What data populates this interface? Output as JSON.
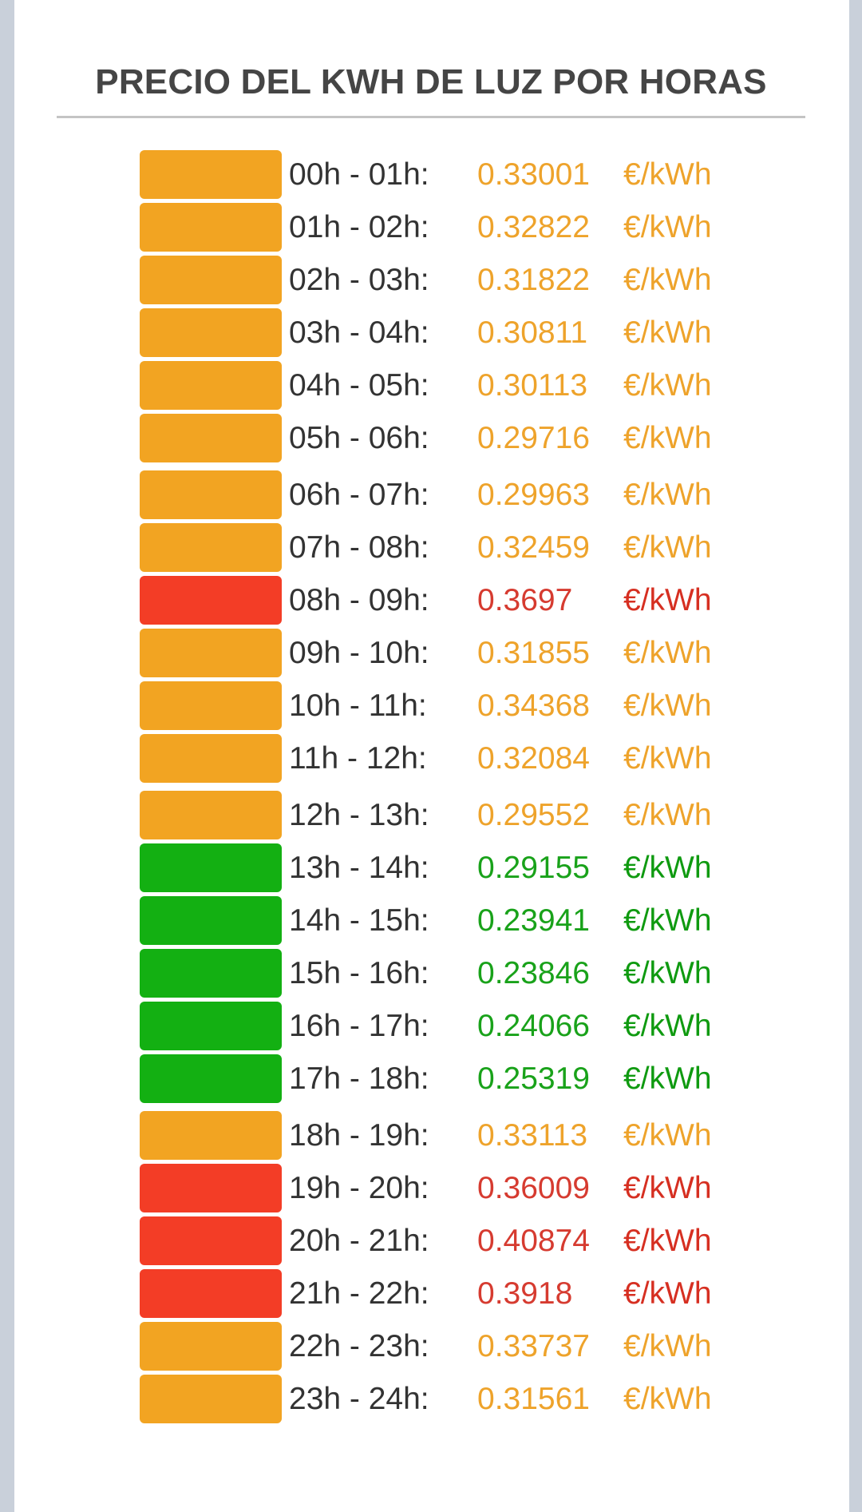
{
  "title": "PRECIO DEL KWH DE LUZ POR HORAS",
  "colors": {
    "mid": "#f2a422",
    "high": "#f33d26",
    "low": "#13b012"
  },
  "rows": [
    {
      "hour": "00h - 01h:",
      "price": "0.33001",
      "unit": "€/kWh",
      "level": "mid"
    },
    {
      "hour": "01h - 02h:",
      "price": "0.32822",
      "unit": "€/kWh",
      "level": "mid"
    },
    {
      "hour": "02h - 03h:",
      "price": "0.31822",
      "unit": "€/kWh",
      "level": "mid"
    },
    {
      "hour": "03h - 04h:",
      "price": "0.30811",
      "unit": "€/kWh",
      "level": "mid"
    },
    {
      "hour": "04h - 05h:",
      "price": "0.30113",
      "unit": "€/kWh",
      "level": "mid"
    },
    {
      "hour": "05h - 06h:",
      "price": "0.29716",
      "unit": "€/kWh",
      "level": "mid"
    },
    {
      "hour": "06h - 07h:",
      "price": "0.29963",
      "unit": "€/kWh",
      "level": "mid"
    },
    {
      "hour": "07h - 08h:",
      "price": "0.32459",
      "unit": "€/kWh",
      "level": "mid"
    },
    {
      "hour": "08h - 09h:",
      "price": "0.3697",
      "unit": "€/kWh",
      "level": "high"
    },
    {
      "hour": "09h - 10h:",
      "price": "0.31855",
      "unit": "€/kWh",
      "level": "mid"
    },
    {
      "hour": "10h - 11h:",
      "price": "0.34368",
      "unit": "€/kWh",
      "level": "mid"
    },
    {
      "hour": "11h - 12h:",
      "price": "0.32084",
      "unit": "€/kWh",
      "level": "mid"
    },
    {
      "hour": "12h - 13h:",
      "price": "0.29552",
      "unit": "€/kWh",
      "level": "mid"
    },
    {
      "hour": "13h - 14h:",
      "price": "0.29155",
      "unit": "€/kWh",
      "level": "low"
    },
    {
      "hour": "14h - 15h:",
      "price": "0.23941",
      "unit": "€/kWh",
      "level": "low"
    },
    {
      "hour": "15h - 16h:",
      "price": "0.23846",
      "unit": "€/kWh",
      "level": "low"
    },
    {
      "hour": "16h - 17h:",
      "price": "0.24066",
      "unit": "€/kWh",
      "level": "low"
    },
    {
      "hour": "17h - 18h:",
      "price": "0.25319",
      "unit": "€/kWh",
      "level": "low"
    },
    {
      "hour": "18h - 19h:",
      "price": "0.33113",
      "unit": "€/kWh",
      "level": "mid"
    },
    {
      "hour": "19h - 20h:",
      "price": "0.36009",
      "unit": "€/kWh",
      "level": "high"
    },
    {
      "hour": "20h - 21h:",
      "price": "0.40874",
      "unit": "€/kWh",
      "level": "high"
    },
    {
      "hour": "21h - 22h:",
      "price": "0.3918",
      "unit": "€/kWh",
      "level": "high"
    },
    {
      "hour": "22h - 23h:",
      "price": "0.33737",
      "unit": "€/kWh",
      "level": "mid"
    },
    {
      "hour": "23h - 24h:",
      "price": "0.31561",
      "unit": "€/kWh",
      "level": "mid"
    }
  ]
}
